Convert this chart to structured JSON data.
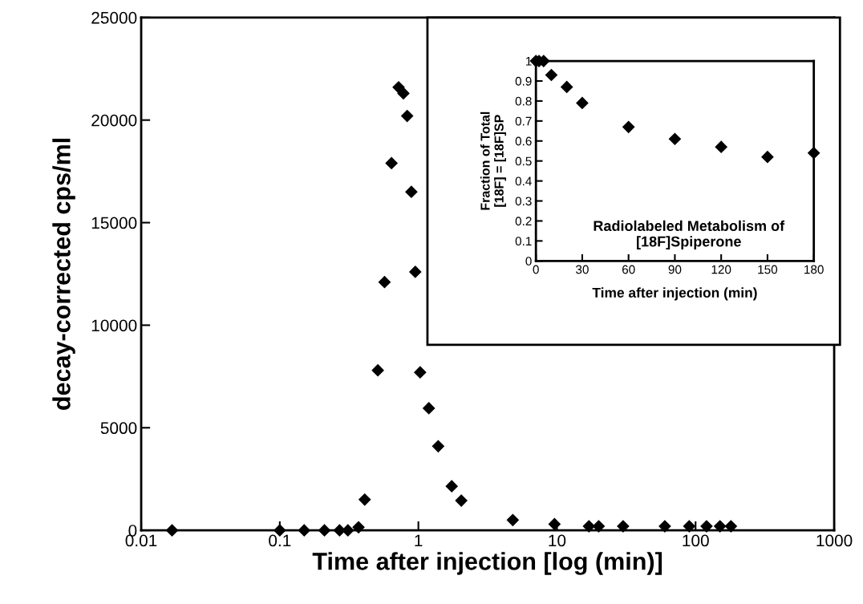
{
  "chart_data": [
    {
      "type": "scatter",
      "xlabel": "Time after injection [log (min)]",
      "ylabel": "decay-corrected cps/ml",
      "log": "x",
      "xlim": [
        0.01,
        1000
      ],
      "xticks": [
        0.01,
        0.1,
        1,
        10,
        100,
        1000
      ],
      "ylim": [
        0,
        25000
      ],
      "yticks": [
        0,
        5000,
        10000,
        15000,
        20000,
        25000
      ],
      "grid": false,
      "legend": false,
      "marker": "diamond",
      "series": [
        {
          "color": "#000000",
          "x": [
            0.0167,
            0.1,
            0.15,
            0.21,
            0.27,
            0.31,
            0.37,
            0.41,
            0.51,
            0.57,
            0.64,
            0.72,
            0.78,
            0.83,
            0.89,
            0.95,
            1.03,
            1.19,
            1.39,
            1.74,
            2.04,
            4.8,
            9.6,
            17,
            20,
            30,
            60,
            90,
            120,
            150,
            180
          ],
          "values": [
            0,
            0,
            0,
            0,
            0,
            0,
            150,
            1500,
            7800,
            12100,
            17900,
            21600,
            21300,
            20200,
            16500,
            12600,
            7700,
            5950,
            4100,
            2150,
            1450,
            500,
            300,
            200,
            200,
            200,
            200,
            200,
            200,
            200,
            200
          ]
        }
      ]
    },
    {
      "type": "scatter",
      "xlabel": "Time after injection (min)",
      "ylabel": "Fraction of Total\n[18F] = [18F]SP",
      "xlim": [
        0,
        180
      ],
      "xticks": [
        0,
        30,
        60,
        90,
        120,
        150,
        180
      ],
      "ylim": [
        0,
        1
      ],
      "yticks": [
        0,
        0.1,
        0.2,
        0.3,
        0.4,
        0.5,
        0.6,
        0.7,
        0.8,
        0.9,
        1
      ],
      "grid": false,
      "legend": false,
      "marker": "diamond",
      "annotations": [
        "Radiolabeled Metabolism of\n[18F]Spiperone"
      ],
      "series": [
        {
          "color": "#000000",
          "x": [
            0,
            2,
            5,
            10,
            20,
            30,
            60,
            90,
            120,
            150,
            180
          ],
          "values": [
            1,
            1,
            1,
            0.93,
            0.87,
            0.79,
            0.67,
            0.61,
            0.57,
            0.52,
            0.54
          ]
        }
      ]
    }
  ]
}
